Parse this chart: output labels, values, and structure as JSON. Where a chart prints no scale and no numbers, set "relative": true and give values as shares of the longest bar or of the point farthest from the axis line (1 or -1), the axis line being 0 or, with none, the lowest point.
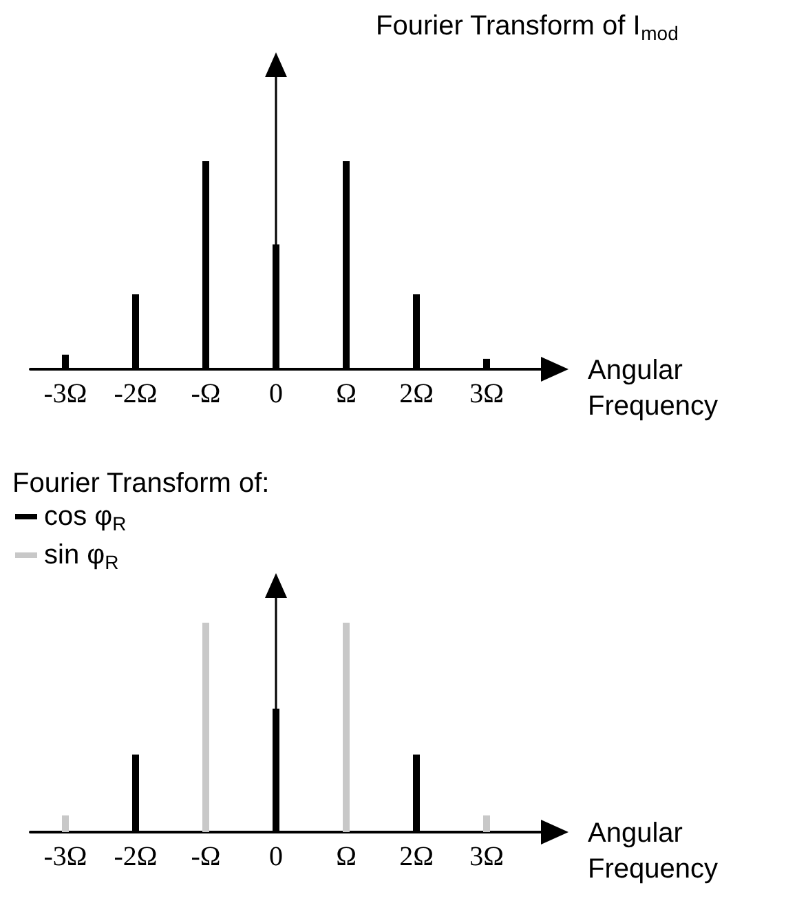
{
  "chart_data": [
    {
      "type": "bar",
      "title": "Fourier Transform of I$_{mod}$",
      "xlabel": "Angular Frequency",
      "categories": [
        "-3Ω",
        "-2Ω",
        "-Ω",
        "0",
        "Ω",
        "2Ω",
        "3Ω"
      ],
      "values": [
        0.07,
        0.36,
        1,
        0.6,
        1,
        0.36,
        0.05
      ],
      "color": "#000000",
      "relative": true,
      "grid": false,
      "legend": false
    },
    {
      "type": "bar",
      "title": "Fourier Transform of:",
      "xlabel": "Angular Frequency",
      "categories": [
        "-3Ω",
        "-2Ω",
        "-Ω",
        "0",
        "Ω",
        "2Ω",
        "3Ω"
      ],
      "relative": true,
      "grid": false,
      "legend": "top left",
      "series": [
        {
          "name": "cos φ$_{R}$",
          "color": "#000000",
          "values": [
            null,
            0.37,
            null,
            0.59,
            null,
            0.37,
            null
          ]
        },
        {
          "name": "sin φ$_{R}$",
          "color": "#c8c8c8",
          "values": [
            0.08,
            null,
            1,
            null,
            1,
            null,
            0.08
          ]
        }
      ]
    }
  ]
}
